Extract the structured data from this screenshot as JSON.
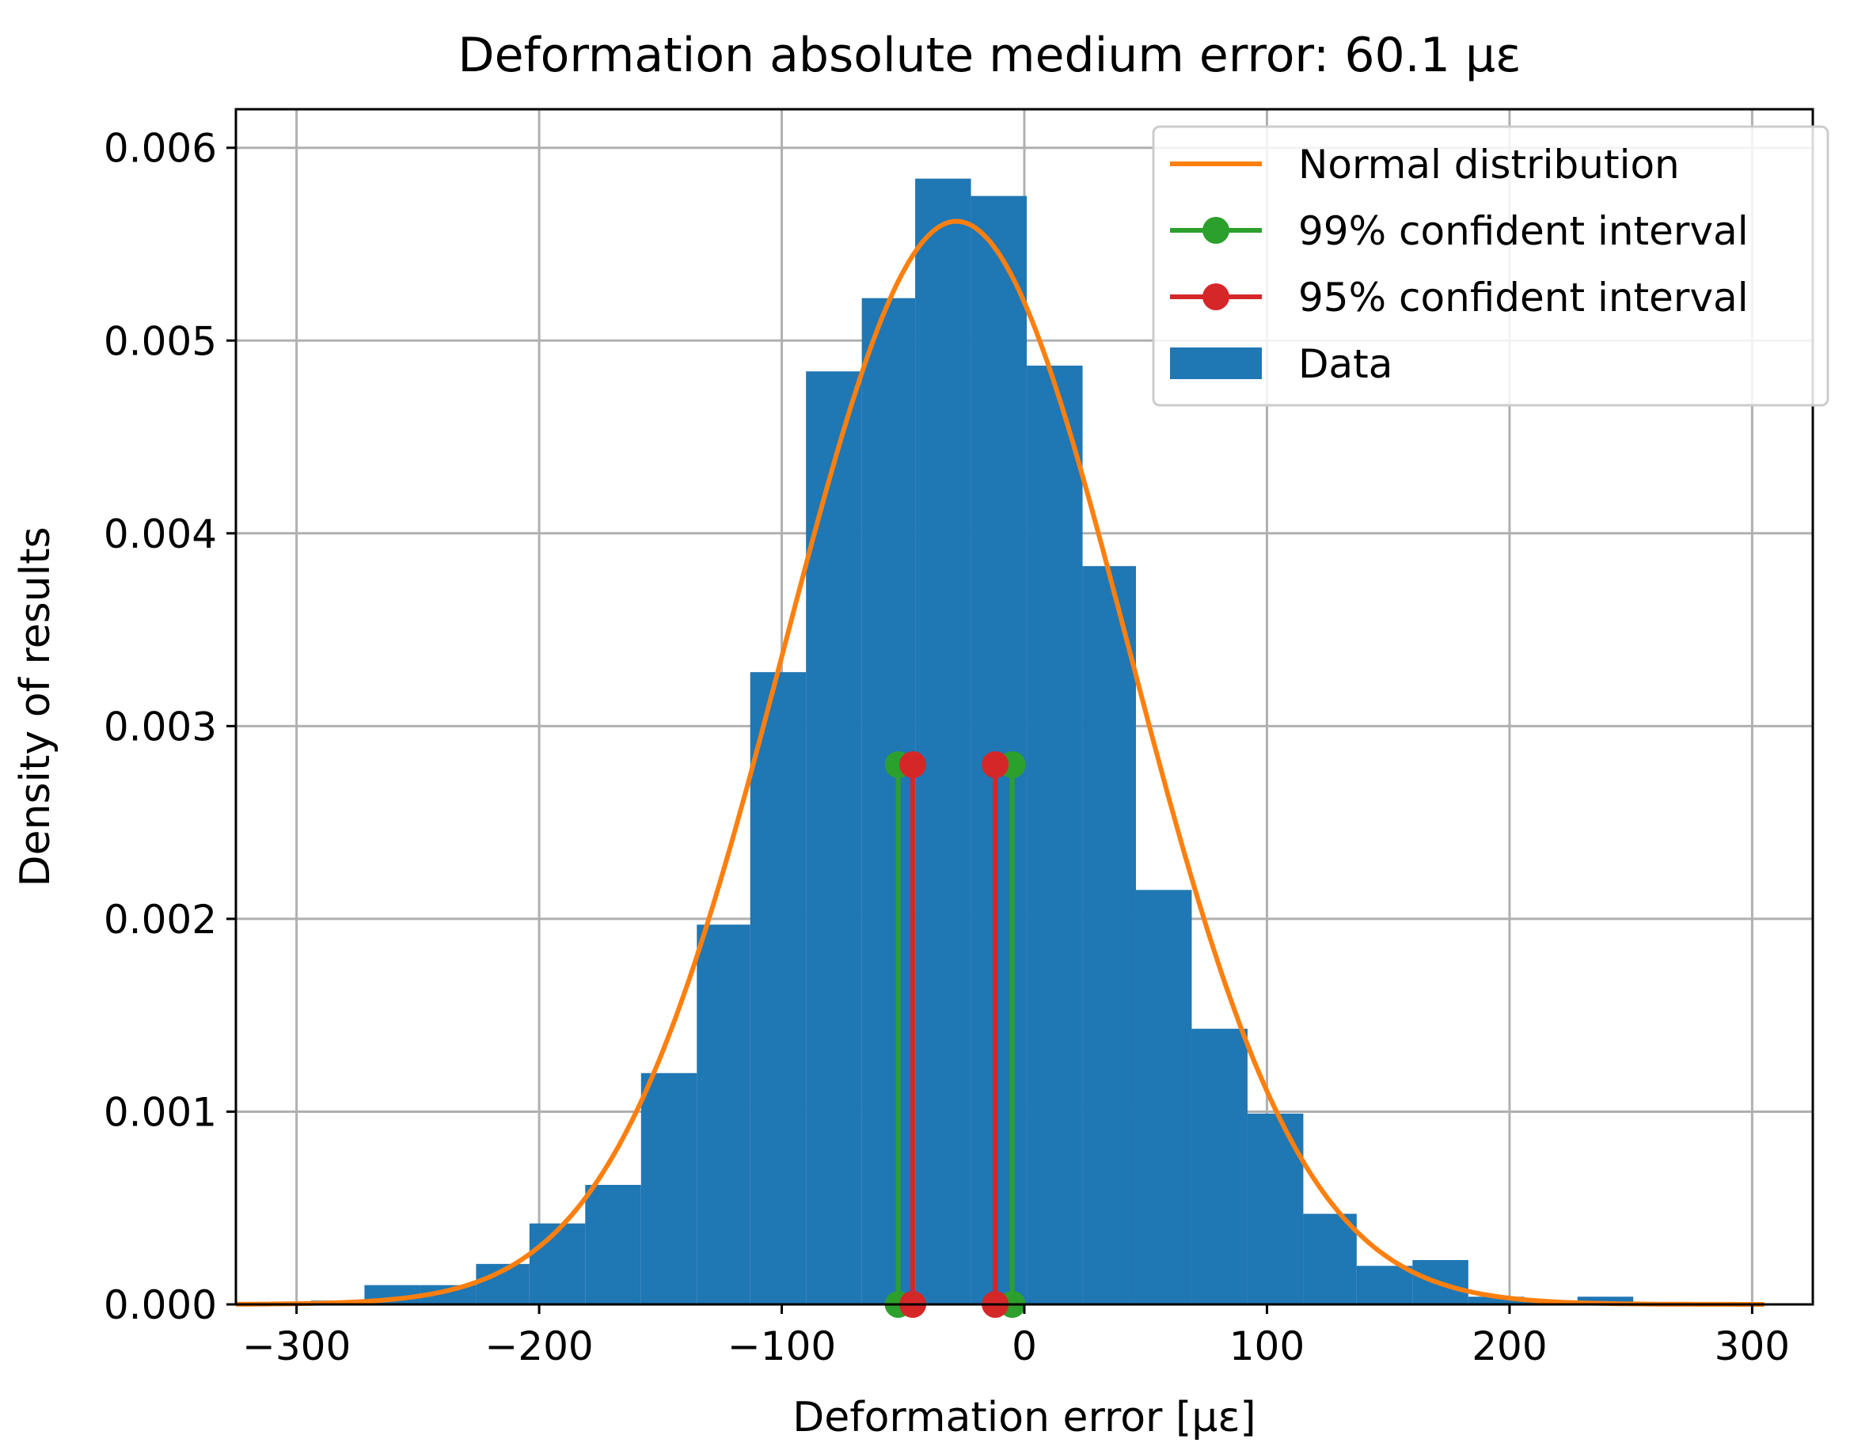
{
  "chart_data": {
    "type": "histogram",
    "title": "Deformation absolute medium error: 60.1 με",
    "xlabel": "Deformation error [με]",
    "ylabel": "Density of results",
    "xlim": [
      -325,
      325
    ],
    "ylim": [
      0,
      0.0062
    ],
    "xticks": [
      -300,
      -200,
      -100,
      0,
      100,
      200,
      300
    ],
    "xtick_labels": [
      "−300",
      "−200",
      "−100",
      "0",
      "100",
      "200",
      "300"
    ],
    "yticks": [
      0,
      0.001,
      0.002,
      0.003,
      0.004,
      0.005,
      0.006
    ],
    "ytick_labels": [
      "0.000",
      "0.001",
      "0.002",
      "0.003",
      "0.004",
      "0.005",
      "0.006"
    ],
    "grid": true,
    "legend_position": "top-right",
    "legend": [
      {
        "label": "Normal distribution",
        "kind": "line",
        "color": "#ff7f0e"
      },
      {
        "label": "99% confident interval",
        "kind": "line-marker",
        "color": "#2ca02c"
      },
      {
        "label": "95% confident interval",
        "kind": "line-marker",
        "color": "#d62728"
      },
      {
        "label": "Data",
        "kind": "patch",
        "color": "#1f77b4"
      }
    ],
    "histogram": {
      "name": "Data",
      "color": "#1f77b4",
      "bins": [
        {
          "x0": -294,
          "x1": -272,
          "density": 2e-05
        },
        {
          "x0": -272,
          "x1": -249,
          "density": 0.0001
        },
        {
          "x0": -249,
          "x1": -226,
          "density": 0.0001
        },
        {
          "x0": -226,
          "x1": -204,
          "density": 0.00021
        },
        {
          "x0": -204,
          "x1": -181,
          "density": 0.00042
        },
        {
          "x0": -181,
          "x1": -158,
          "density": 0.00062
        },
        {
          "x0": -158,
          "x1": -135,
          "density": 0.0012
        },
        {
          "x0": -135,
          "x1": -113,
          "density": 0.00197
        },
        {
          "x0": -113,
          "x1": -90,
          "density": 0.00328
        },
        {
          "x0": -90,
          "x1": -67,
          "density": 0.00484
        },
        {
          "x0": -67,
          "x1": -45,
          "density": 0.00522
        },
        {
          "x0": -45,
          "x1": -22,
          "density": 0.00584
        },
        {
          "x0": -22,
          "x1": 1,
          "density": 0.00575
        },
        {
          "x0": 1,
          "x1": 24,
          "density": 0.00487
        },
        {
          "x0": 24,
          "x1": 46,
          "density": 0.00383
        },
        {
          "x0": 46,
          "x1": 69,
          "density": 0.00215
        },
        {
          "x0": 69,
          "x1": 92,
          "density": 0.00143
        },
        {
          "x0": 92,
          "x1": 115,
          "density": 0.00099
        },
        {
          "x0": 115,
          "x1": 137,
          "density": 0.00047
        },
        {
          "x0": 137,
          "x1": 160,
          "density": 0.0002
        },
        {
          "x0": 160,
          "x1": 183,
          "density": 0.00023
        },
        {
          "x0": 183,
          "x1": 206,
          "density": 4e-05
        },
        {
          "x0": 206,
          "x1": 228,
          "density": 2e-05
        },
        {
          "x0": 228,
          "x1": 251,
          "density": 4e-05
        }
      ]
    },
    "normal_distribution": {
      "name": "Normal distribution",
      "color": "#ff7f0e",
      "mean": -28,
      "std": 71,
      "x_range": [
        -325,
        305
      ]
    },
    "intervals": [
      {
        "name": "99% confident interval",
        "color": "#2ca02c",
        "x": [
          -52,
          -5
        ],
        "y": [
          0,
          0.0028
        ]
      },
      {
        "name": "95% confident interval",
        "color": "#d62728",
        "x": [
          -46,
          -12
        ],
        "y": [
          0,
          0.0028
        ]
      }
    ]
  }
}
